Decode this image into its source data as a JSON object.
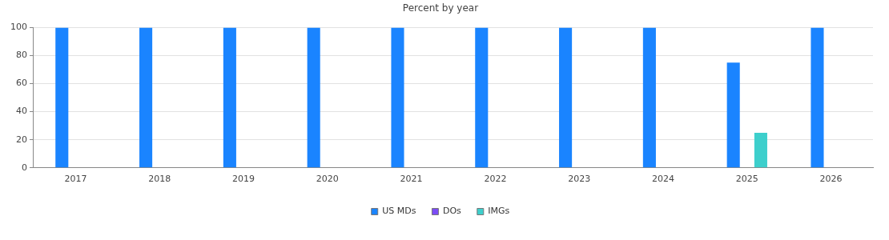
{
  "chart_data": {
    "type": "bar",
    "title": "Percent by year",
    "categories": [
      "2017",
      "2018",
      "2019",
      "2020",
      "2021",
      "2022",
      "2023",
      "2024",
      "2025",
      "2026"
    ],
    "series": [
      {
        "name": "US MDs",
        "color": "#1a84ff",
        "values": [
          100,
          100,
          100,
          100,
          100,
          100,
          100,
          100,
          75,
          100
        ]
      },
      {
        "name": "DOs",
        "color": "#7b4cf5",
        "values": [
          0,
          0,
          0,
          0,
          0,
          0,
          0,
          0,
          0,
          0
        ]
      },
      {
        "name": "IMGs",
        "color": "#3dcfcc",
        "values": [
          0,
          0,
          0,
          0,
          0,
          0,
          0,
          0,
          25,
          0
        ]
      }
    ],
    "ylim": [
      0,
      100
    ],
    "yticks": [
      0,
      20,
      40,
      60,
      80,
      100
    ],
    "grid": "y",
    "legend": "bottom"
  }
}
